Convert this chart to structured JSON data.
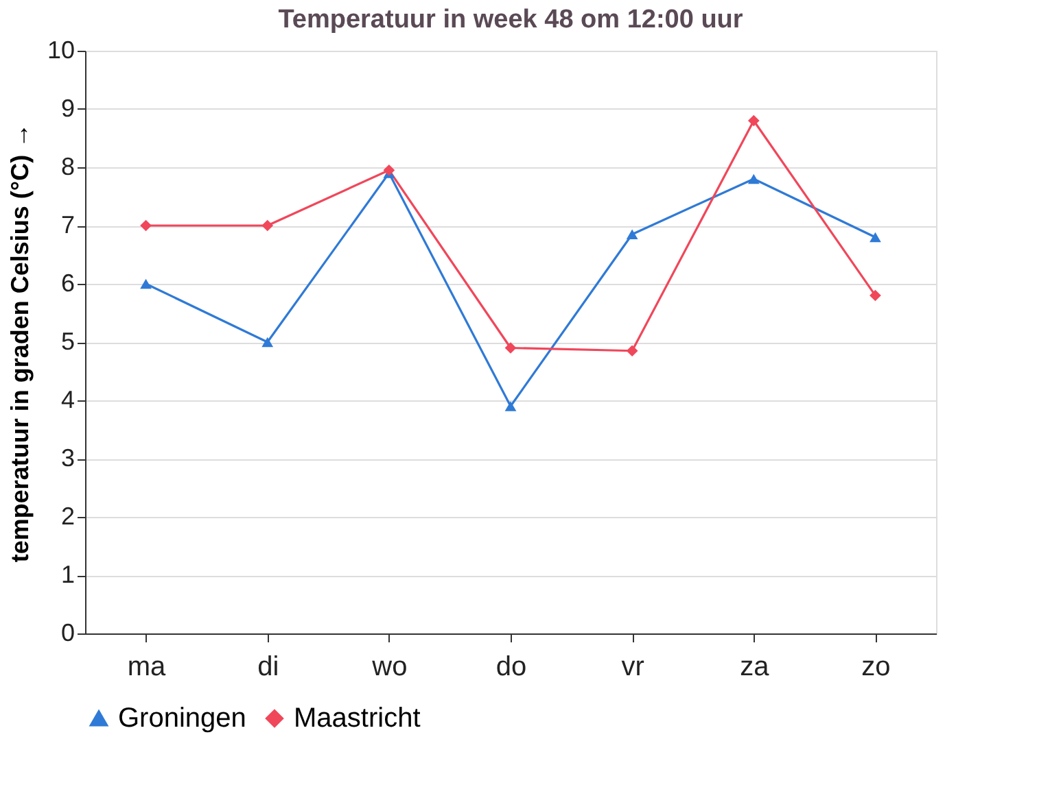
{
  "chart_data": {
    "type": "line",
    "title": "Temperatuur in week 48 om 12:00 uur",
    "ylabel": "temperatuur in graden Celsius (°C) →",
    "categories": [
      "ma",
      "di",
      "wo",
      "do",
      "vr",
      "za",
      "zo"
    ],
    "series": [
      {
        "name": "Groningen",
        "color": "#2f7ad6",
        "marker": "triangle",
        "values": [
          6,
          5,
          7.9,
          3.9,
          6.85,
          7.8,
          6.8
        ]
      },
      {
        "name": "Maastricht",
        "color": "#f0475a",
        "marker": "diamond",
        "values": [
          7,
          7,
          7.95,
          4.9,
          4.85,
          8.8,
          5.8
        ]
      }
    ],
    "ylim": [
      0,
      10
    ],
    "yticks": [
      0,
      1,
      2,
      3,
      4,
      5,
      6,
      7,
      8,
      9,
      10
    ],
    "grid": "y",
    "legend": "bottom",
    "line_style": "solid"
  }
}
